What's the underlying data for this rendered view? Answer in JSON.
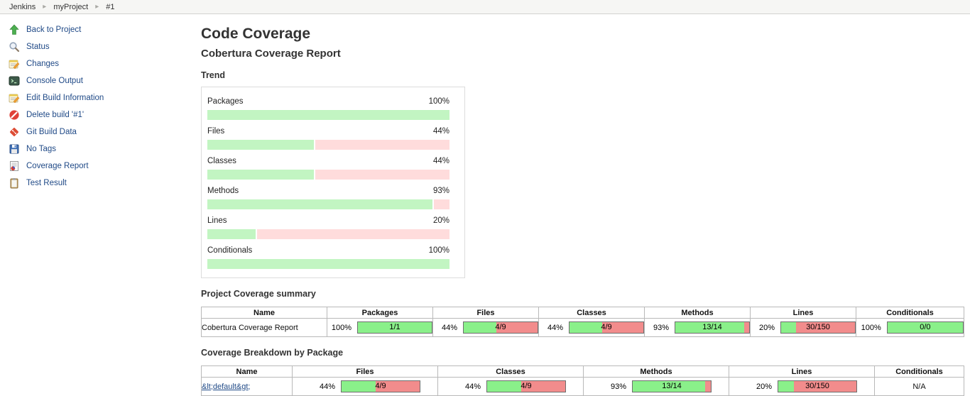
{
  "colors": {
    "link": "#204a87",
    "bar-green": "#8af08a",
    "bar-red": "#f28c8c",
    "bar-border": "#6e6e6e",
    "trend-green": "#c2f5c2",
    "trend-pink": "#ffdcdc"
  },
  "breadcrumb": {
    "separator": "▸",
    "items": [
      {
        "label": "Jenkins"
      },
      {
        "label": "myProject"
      },
      {
        "label": "#1"
      }
    ]
  },
  "sidebar": {
    "items": [
      {
        "label": "Back to Project"
      },
      {
        "label": "Status"
      },
      {
        "label": "Changes"
      },
      {
        "label": "Console Output"
      },
      {
        "label": "Edit Build Information"
      },
      {
        "label": "Delete build '#1'"
      },
      {
        "label": "Git Build Data"
      },
      {
        "label": "No Tags"
      },
      {
        "label": "Coverage Report"
      },
      {
        "label": "Test Result"
      }
    ]
  },
  "main": {
    "title": "Code Coverage",
    "subtitle": "Cobertura Coverage Report",
    "trend_heading": "Trend",
    "summary_heading": "Project Coverage summary",
    "breakdown_heading": "Coverage Breakdown by Package"
  },
  "trend": {
    "rows": [
      {
        "label": "Packages",
        "pct": 100,
        "pct_label": "100%"
      },
      {
        "label": "Files",
        "pct": 44,
        "pct_label": "44%"
      },
      {
        "label": "Classes",
        "pct": 44,
        "pct_label": "44%"
      },
      {
        "label": "Methods",
        "pct": 93,
        "pct_label": "93%"
      },
      {
        "label": "Lines",
        "pct": 20,
        "pct_label": "20%"
      },
      {
        "label": "Conditionals",
        "pct": 100,
        "pct_label": "100%"
      }
    ]
  },
  "summary_table": {
    "headers": [
      "Name",
      "Packages",
      "Files",
      "Classes",
      "Methods",
      "Lines",
      "Conditionals"
    ],
    "row": {
      "name": "Cobertura Coverage Report",
      "metrics": [
        {
          "pct": 100,
          "pct_label": "100%",
          "ratio": "1/1"
        },
        {
          "pct": 44,
          "pct_label": "44%",
          "ratio": "4/9"
        },
        {
          "pct": 44,
          "pct_label": "44%",
          "ratio": "4/9"
        },
        {
          "pct": 93,
          "pct_label": "93%",
          "ratio": "13/14"
        },
        {
          "pct": 20,
          "pct_label": "20%",
          "ratio": "30/150"
        },
        {
          "pct": 100,
          "pct_label": "100%",
          "ratio": "0/0"
        }
      ]
    }
  },
  "breakdown_table": {
    "headers": [
      "Name",
      "Files",
      "Classes",
      "Methods",
      "Lines",
      "Conditionals"
    ],
    "row": {
      "name": "&lt;default&gt;",
      "metrics": [
        {
          "pct": 44,
          "pct_label": "44%",
          "ratio": "4/9"
        },
        {
          "pct": 44,
          "pct_label": "44%",
          "ratio": "4/9"
        },
        {
          "pct": 93,
          "pct_label": "93%",
          "ratio": "13/14"
        },
        {
          "pct": 20,
          "pct_label": "20%",
          "ratio": "30/150"
        }
      ],
      "conditionals": "N/A"
    }
  }
}
